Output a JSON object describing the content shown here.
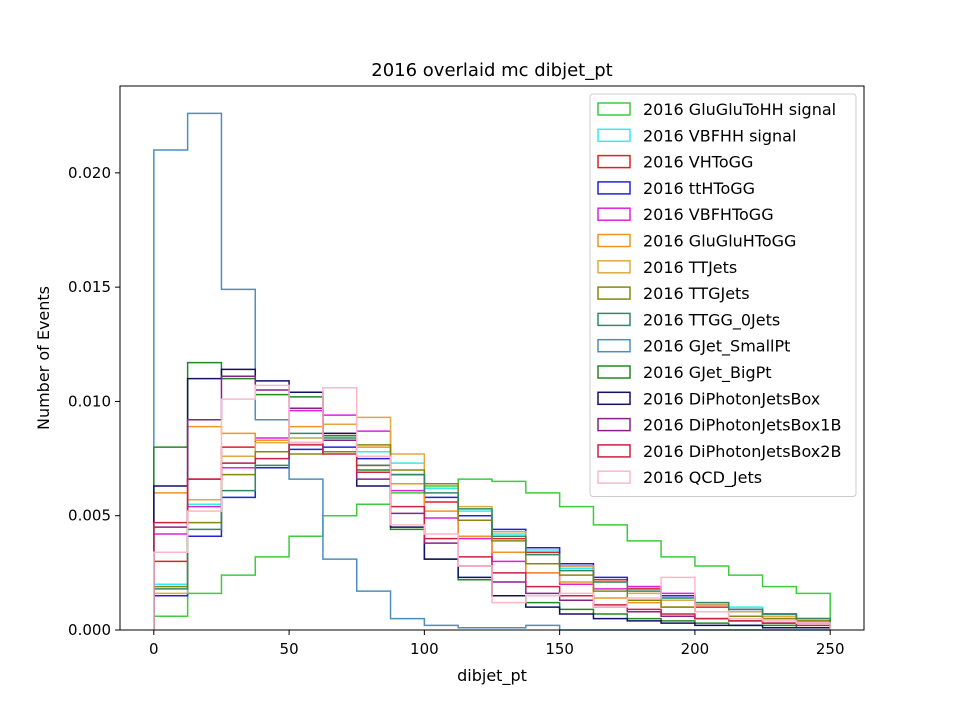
{
  "chart_data": {
    "type": "histogram-step",
    "title": "2016 overlaid mc dibjet_pt",
    "xlabel": "dibjet_pt",
    "ylabel": "Number of Events",
    "xlim": [
      -12.5,
      262.5
    ],
    "ylim": [
      0,
      0.0238
    ],
    "xticks": [
      0,
      50,
      100,
      150,
      200,
      250
    ],
    "xtick_labels": [
      "0",
      "50",
      "100",
      "150",
      "200",
      "250"
    ],
    "yticks": [
      0,
      0.005,
      0.01,
      0.015,
      0.02
    ],
    "ytick_labels": [
      "0.000",
      "0.005",
      "0.010",
      "0.015",
      "0.020"
    ],
    "legend_position": "upper right",
    "bin_edges": [
      0,
      12.5,
      25,
      37.5,
      50,
      62.5,
      75,
      87.5,
      100,
      112.5,
      125,
      137.5,
      150,
      162.5,
      175,
      187.5,
      200,
      212.5,
      225,
      237.5,
      250
    ],
    "series": [
      {
        "name": "2016 GluGluToHH signal",
        "color": "#3dcc3d",
        "values": [
          0.0006,
          0.0016,
          0.0024,
          0.0032,
          0.0041,
          0.005,
          0.0055,
          0.006,
          0.0063,
          0.0066,
          0.0065,
          0.006,
          0.0054,
          0.0046,
          0.0039,
          0.0032,
          0.0028,
          0.0024,
          0.0019,
          0.0016
        ]
      },
      {
        "name": "2016 VBFHH signal",
        "color": "#33eeee",
        "values": [
          0.002,
          0.0055,
          0.0073,
          0.0083,
          0.0084,
          0.0083,
          0.0078,
          0.0073,
          0.0062,
          0.0052,
          0.0042,
          0.0035,
          0.0027,
          0.0022,
          0.0018,
          0.0014,
          0.0012,
          0.001,
          0.0007,
          0.0005
        ]
      },
      {
        "name": "2016 VHToGG",
        "color": "#dd2222",
        "values": [
          0.003,
          0.0066,
          0.008,
          0.0083,
          0.0082,
          0.0078,
          0.0072,
          0.0064,
          0.0056,
          0.0048,
          0.004,
          0.0034,
          0.0028,
          0.0022,
          0.0018,
          0.0015,
          0.001,
          0.0008,
          0.0006,
          0.0004
        ]
      },
      {
        "name": "2016 ttHToGG",
        "color": "#2222dd",
        "values": [
          0.0015,
          0.0041,
          0.0058,
          0.0071,
          0.0079,
          0.008,
          0.0075,
          0.0068,
          0.0058,
          0.005,
          0.0044,
          0.0036,
          0.0029,
          0.0023,
          0.0019,
          0.0015,
          0.0011,
          0.0009,
          0.0007,
          0.0005
        ]
      },
      {
        "name": "2016 VBFHToGG",
        "color": "#dd22dd",
        "values": [
          0.0042,
          0.0054,
          0.0071,
          0.0084,
          0.0096,
          0.0094,
          0.0087,
          0.0061,
          0.0049,
          0.004,
          0.003,
          0.0025,
          0.002,
          0.0018,
          0.0019,
          0.0016,
          0.0008,
          0.0006,
          0.0005,
          0.0003
        ]
      },
      {
        "name": "2016 GluGluHToGG",
        "color": "#f29422",
        "values": [
          0.006,
          0.0089,
          0.0086,
          0.0083,
          0.0089,
          0.0086,
          0.008,
          0.0064,
          0.0052,
          0.0041,
          0.0034,
          0.0025,
          0.0021,
          0.0014,
          0.0012,
          0.001,
          0.0008,
          0.0006,
          0.0005,
          0.0004
        ]
      },
      {
        "name": "2016 TTJets",
        "color": "#ddaa44",
        "values": [
          0.0016,
          0.0057,
          0.0076,
          0.0082,
          0.0084,
          0.009,
          0.0093,
          0.0077,
          0.0064,
          0.0054,
          0.0043,
          0.0033,
          0.0028,
          0.0021,
          0.0016,
          0.0013,
          0.0011,
          0.0008,
          0.0006,
          0.0005
        ]
      },
      {
        "name": "2016 TTGJets",
        "color": "#888811",
        "values": [
          0.0019,
          0.0047,
          0.0068,
          0.0078,
          0.0077,
          0.0078,
          0.0081,
          0.007,
          0.0064,
          0.0048,
          0.0039,
          0.0029,
          0.0024,
          0.0017,
          0.0013,
          0.001,
          0.0008,
          0.0006,
          0.0005,
          0.0004
        ]
      },
      {
        "name": "2016 TTGG_0Jets",
        "color": "#338866",
        "values": [
          0.0018,
          0.0044,
          0.0061,
          0.0072,
          0.0086,
          0.0084,
          0.0072,
          0.0068,
          0.006,
          0.0053,
          0.0041,
          0.0033,
          0.0026,
          0.0021,
          0.0017,
          0.0014,
          0.0012,
          0.0009,
          0.0007,
          0.0005
        ]
      },
      {
        "name": "2016 GJet_SmallPt",
        "color": "#4b8fbf",
        "values": [
          0.021,
          0.0226,
          0.0149,
          0.0092,
          0.0066,
          0.0031,
          0.0017,
          0.0005,
          0.0002,
          0.0001,
          0.0001,
          0.0002,
          0.0,
          0.0,
          0.0,
          0.0,
          0.0,
          0.0,
          0.0,
          0.0
        ]
      },
      {
        "name": "2016 GJet_BigPt",
        "color": "#228822",
        "values": [
          0.008,
          0.0117,
          0.011,
          0.0103,
          0.0102,
          0.0085,
          0.007,
          0.0044,
          0.0031,
          0.0022,
          0.0015,
          0.0012,
          0.0009,
          0.0007,
          0.0005,
          0.0004,
          0.0003,
          0.0002,
          0.0002,
          0.0001
        ]
      },
      {
        "name": "2016 DiPhotonJetsBox",
        "color": "#111166",
        "values": [
          0.0063,
          0.011,
          0.0114,
          0.0109,
          0.0104,
          0.0086,
          0.0063,
          0.0045,
          0.0031,
          0.0023,
          0.0015,
          0.001,
          0.0007,
          0.0005,
          0.0004,
          0.0003,
          0.0002,
          0.0002,
          0.0001,
          0.0001
        ]
      },
      {
        "name": "2016 DiPhotonJetsBox1B",
        "color": "#882288",
        "values": [
          0.0045,
          0.0092,
          0.0111,
          0.0105,
          0.0097,
          0.0083,
          0.0066,
          0.0051,
          0.0038,
          0.0028,
          0.0021,
          0.0016,
          0.0013,
          0.001,
          0.0008,
          0.0006,
          0.0005,
          0.0004,
          0.0003,
          0.0003
        ]
      },
      {
        "name": "2016 DiPhotonJetsBox2B",
        "color": "#cc2244",
        "values": [
          0.0047,
          0.0066,
          0.0073,
          0.0075,
          0.0081,
          0.0077,
          0.0069,
          0.0054,
          0.004,
          0.0032,
          0.0025,
          0.0019,
          0.0015,
          0.0011,
          0.0009,
          0.0007,
          0.0005,
          0.0004,
          0.0003,
          0.0002
        ]
      },
      {
        "name": "2016 QCD_Jets",
        "color": "#ffb6c8",
        "values": [
          0.0034,
          0.0052,
          0.0101,
          0.0107,
          0.0082,
          0.0106,
          0.0076,
          0.0046,
          0.0042,
          0.0028,
          0.0012,
          0.0015,
          0.0016,
          0.001,
          0.0014,
          0.0023,
          0.0008,
          0.0005,
          0.0004,
          0.0003
        ]
      }
    ]
  }
}
